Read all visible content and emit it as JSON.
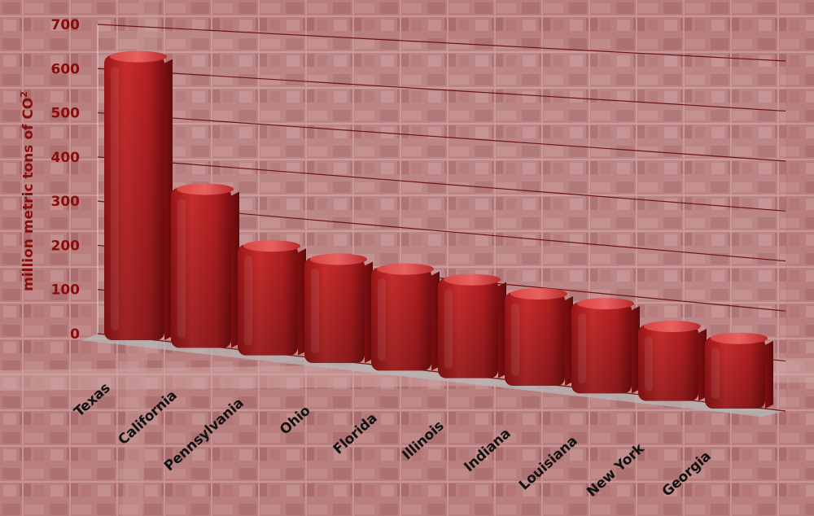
{
  "chart_data": {
    "type": "bar",
    "categories": [
      "Texas",
      "California",
      "Pennsylvania",
      "Ohio",
      "Florida",
      "Illinois",
      "Indiana",
      "Louisiana",
      "New York",
      "Georgia"
    ],
    "values": [
      655,
      368,
      255,
      242,
      237,
      230,
      215,
      210,
      175,
      165
    ],
    "ylabel": "million metric tons of CO",
    "ylabel_superscript": "2",
    "yticks": [
      "0",
      "100",
      "200",
      "300",
      "400",
      "500",
      "600",
      "700"
    ],
    "ylim": [
      0,
      700
    ],
    "grid": true,
    "legend": "none"
  },
  "colors": {
    "bar_main": "#c0282a",
    "bar_dark": "#7e1012",
    "bar_light": "#e25554",
    "axis_text": "#8a0b0b",
    "category_text": "#111111",
    "gridline": "#6e1414",
    "background_tint": "#b97d7d",
    "floor": "#b7b7b7"
  },
  "background": {
    "kind": "aerial-map-texture"
  }
}
